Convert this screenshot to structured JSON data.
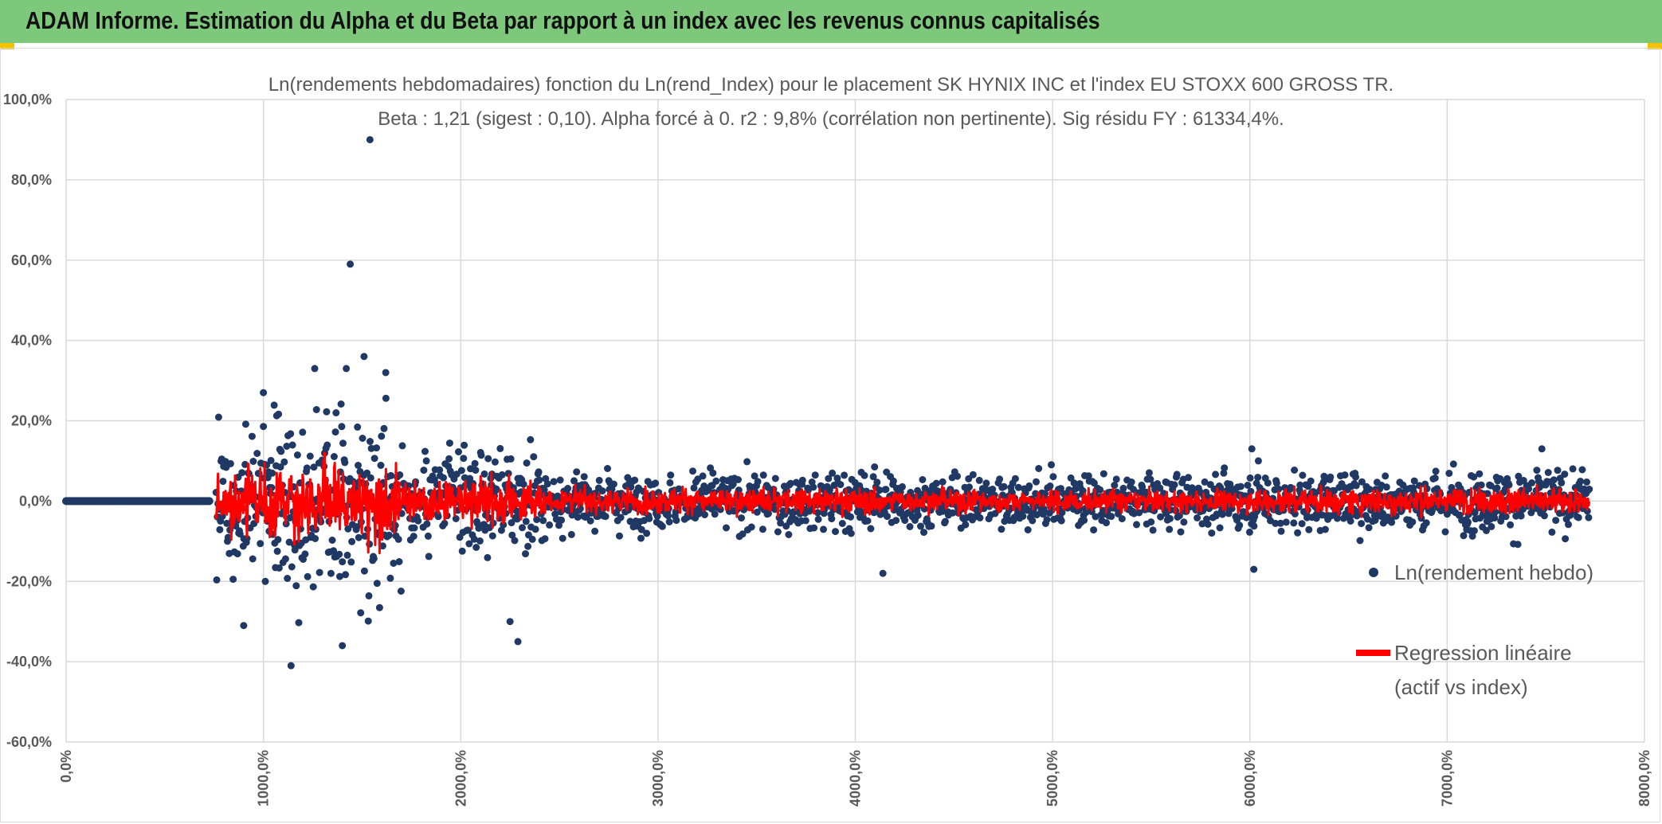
{
  "header": {
    "title": "ADAM Informe. Estimation du Alpha et du Beta par rapport à un index avec les revenus connus capitalisés"
  },
  "colors": {
    "banner": "#7ec87c",
    "points": "#203864",
    "regression": "#ff0000",
    "grid": "#d9d9d9",
    "text": "#595959"
  },
  "chart_data": {
    "type": "scatter",
    "title_line1": "Ln(rendements hebdomadaires) fonction du Ln(rend_Index) pour le placement SK HYNIX INC et l'index EU STOXX 600 GROSS TR.",
    "title_line2": "Beta : 1,21 (sigest : 0,10). Alpha forcé à 0. r2 : 9,8% (corrélation non pertinente). Sig résidu FY : 61334,4%.",
    "y_ticks": [
      "100,0%",
      "80,0%",
      "60,0%",
      "40,0%",
      "20,0%",
      "0,0%",
      "-20,0%",
      "-40,0%",
      "-60,0%"
    ],
    "x_ticks": [
      "0,0%",
      "1000,0%",
      "2000,0%",
      "3000,0%",
      "4000,0%",
      "5000,0%",
      "6000,0%",
      "7000,0%",
      "8000,0%"
    ],
    "ylim": [
      -60,
      100
    ],
    "xlim": [
      0,
      8000
    ],
    "grid": true,
    "legend_position": "right",
    "series": [
      {
        "name": "Ln(rendement hebdo)",
        "kind": "scatter",
        "color": "#203864"
      },
      {
        "name": "Regression linéaire (actif vs index)",
        "kind": "line",
        "color": "#ff0000"
      }
    ],
    "legend_labels": [
      "Ln(rendement hebdo)",
      "Regression linéaire",
      "(actif vs index)"
    ],
    "notable_points": [
      {
        "x": 1540,
        "y": 90
      },
      {
        "x": 1440,
        "y": 59
      },
      {
        "x": 1510,
        "y": 36
      },
      {
        "x": 1260,
        "y": 33
      },
      {
        "x": 1420,
        "y": 33
      },
      {
        "x": 1620,
        "y": 32
      },
      {
        "x": 1000,
        "y": 27
      },
      {
        "x": 1140,
        "y": -41
      },
      {
        "x": 1400,
        "y": -36
      },
      {
        "x": 900,
        "y": -31
      },
      {
        "x": 2290,
        "y": -35
      },
      {
        "x": 2250,
        "y": -30
      },
      {
        "x": 6020,
        "y": -17
      },
      {
        "x": 4140,
        "y": -18
      },
      {
        "x": 6010,
        "y": 13
      },
      {
        "x": 7480,
        "y": 13
      }
    ]
  }
}
